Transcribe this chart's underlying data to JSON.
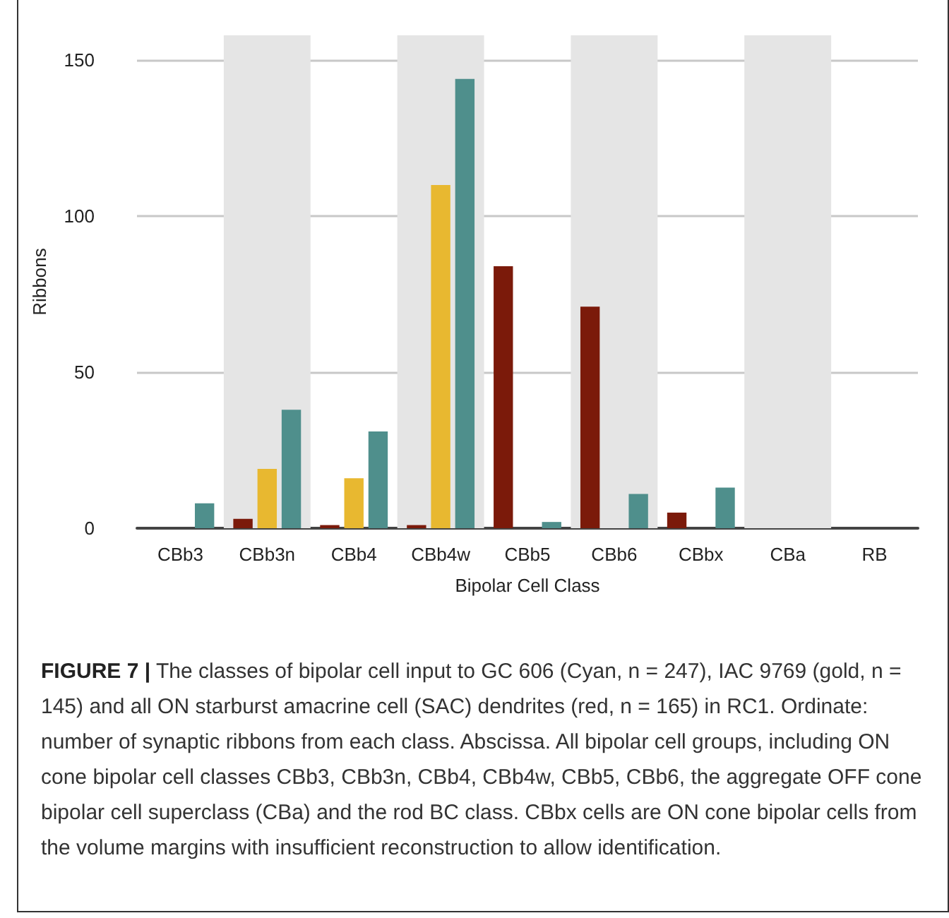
{
  "chart_data": {
    "type": "bar",
    "title": "FIGURE 7 |",
    "annotations": [
      "The classes of bipolar cell input to GC 606 (Cyan, n = 247), IAC 9769 (gold, n = 145) and all ON starburst amacrine cell (SAC) dendrites (red, n = 165) in RC1. Ordinate: number of synaptic ribbons from each class. Abscissa. All bipolar cell groups, including ON cone bipolar cell classes CBb3, CBb3n, CBb4, CBb4w, CBb5, CBb6, the aggregate OFF cone bipolar cell superclass (CBa) and the rod BC class. CBbx cells are ON cone bipolar cells from the volume margins with insufficient reconstruction to allow identification."
    ],
    "xlabel": "Bipolar Cell Class",
    "ylabel": "Ribbons",
    "categories": [
      "CBb3",
      "CBb3n",
      "CBb4",
      "CBb4w",
      "CBb5",
      "CBb6",
      "CBbx",
      "CBa",
      "RB"
    ],
    "series": [
      {
        "color": "#7b1a0a",
        "values": [
          0,
          3,
          1,
          1,
          84,
          71,
          5,
          0,
          0
        ]
      },
      {
        "color": "#e8b830",
        "values": [
          0,
          19,
          16,
          110,
          0,
          0,
          0,
          0,
          0
        ]
      },
      {
        "color": "#4f8f8c",
        "values": [
          8,
          38,
          31,
          144,
          2,
          11,
          13,
          0,
          0
        ]
      }
    ],
    "ylim": [
      0,
      158
    ],
    "yticks": [
      0,
      50,
      100,
      150
    ],
    "grid": "y",
    "bands": [
      {
        "axis": "x",
        "from": "CBb3n",
        "to": "CBb3n",
        "color": "#e5e5e5"
      },
      {
        "axis": "x",
        "from": "CBb4w",
        "to": "CBb4w",
        "color": "#e5e5e5"
      },
      {
        "axis": "x",
        "from": "CBb6",
        "to": "CBb6",
        "color": "#e5e5e5"
      },
      {
        "axis": "x",
        "from": "CBa",
        "to": "CBa",
        "color": "#e5e5e5"
      }
    ]
  }
}
